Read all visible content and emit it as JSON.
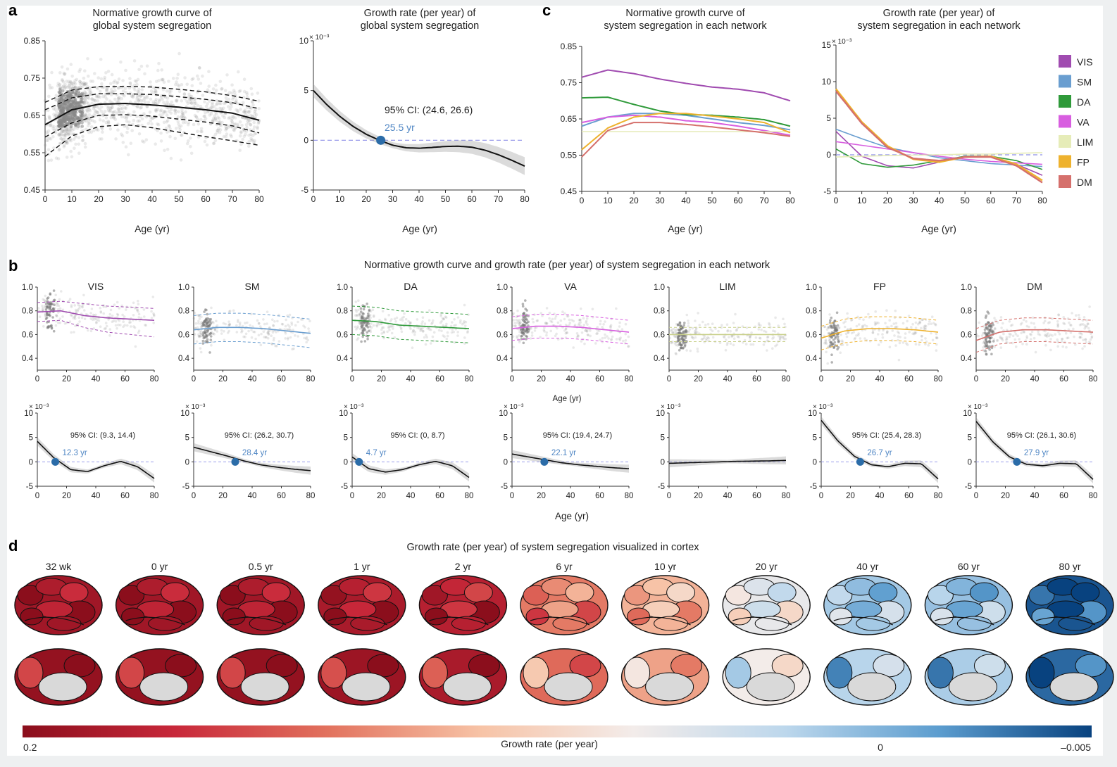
{
  "panel_letters": {
    "a": "a",
    "b": "b",
    "c": "c",
    "d": "d"
  },
  "colors": {
    "VIS": "#a04bb0",
    "SM": "#6a9ed0",
    "DA": "#2f9a3a",
    "VA": "#d85ee0",
    "LIM": "#e6ecb8",
    "FP": "#eeb22e",
    "DM": "#d5706c",
    "highlight_point": "#2b6ca8",
    "ci_text": "#4f86c4",
    "zero_line": "#8e90e8",
    "colorbar": [
      "#8b0e1c",
      "#c8283a",
      "#e2725e",
      "#f7c3a6",
      "#f3ecea",
      "#bcd7ec",
      "#5c9dcf",
      "#08427f"
    ]
  },
  "chart_data": [
    {
      "id": "a-left",
      "type": "scatter",
      "title": [
        "Normative growth curve of",
        "global system segregation"
      ],
      "xlabel": "Age (yr)",
      "xlim": [
        0,
        80
      ],
      "ylim": [
        0.45,
        0.85
      ],
      "xticks": [
        0,
        10,
        20,
        30,
        40,
        50,
        60,
        70,
        80
      ],
      "yticks": [
        0.45,
        0.55,
        0.65,
        0.75,
        0.85
      ],
      "ytick_labels": [
        "0.45",
        "0.55",
        "0.65",
        "0.75",
        "0.85"
      ],
      "series": [
        {
          "role": "median",
          "x": [
            0,
            10,
            20,
            30,
            40,
            50,
            60,
            70,
            80
          ],
          "y": [
            0.625,
            0.665,
            0.68,
            0.682,
            0.678,
            0.672,
            0.665,
            0.656,
            0.637
          ]
        },
        {
          "role": "centile",
          "x": [
            0,
            10,
            20,
            30,
            40,
            50,
            60,
            70,
            80
          ],
          "y": [
            0.685,
            0.718,
            0.727,
            0.728,
            0.726,
            0.72,
            0.713,
            0.703,
            0.688
          ]
        },
        {
          "role": "centile",
          "x": [
            0,
            10,
            20,
            30,
            40,
            50,
            60,
            70,
            80
          ],
          "y": [
            0.665,
            0.697,
            0.708,
            0.708,
            0.706,
            0.7,
            0.693,
            0.684,
            0.668
          ]
        },
        {
          "role": "centile",
          "x": [
            0,
            10,
            20,
            30,
            40,
            50,
            60,
            70,
            80
          ],
          "y": [
            0.592,
            0.63,
            0.65,
            0.652,
            0.648,
            0.64,
            0.632,
            0.622,
            0.603
          ]
        },
        {
          "role": "centile",
          "x": [
            0,
            10,
            20,
            30,
            40,
            50,
            60,
            70,
            80
          ],
          "y": [
            0.54,
            0.595,
            0.62,
            0.625,
            0.617,
            0.605,
            0.593,
            0.582,
            0.57
          ]
        }
      ]
    },
    {
      "id": "a-right",
      "type": "line",
      "title": [
        "Growth rate (per year) of",
        "global system segregation"
      ],
      "xlabel": "Age (yr)",
      "xlim": [
        0,
        80
      ],
      "ylim": [
        -5,
        10
      ],
      "xticks": [
        0,
        10,
        20,
        30,
        40,
        50,
        60,
        70,
        80
      ],
      "yticks": [
        -5,
        0,
        5,
        10
      ],
      "ytick_labels": [
        "-5",
        "0",
        "5",
        "10"
      ],
      "exponent": "× 10⁻³",
      "x": [
        0,
        5,
        10,
        15,
        20,
        25,
        30,
        35,
        40,
        45,
        50,
        55,
        60,
        65,
        70,
        75,
        80
      ],
      "y": [
        5.0,
        3.6,
        2.4,
        1.4,
        0.6,
        0.0,
        -0.5,
        -0.75,
        -0.8,
        -0.72,
        -0.62,
        -0.6,
        -0.7,
        -1.0,
        -1.45,
        -2.0,
        -2.6
      ],
      "point": {
        "x": 25.5,
        "y": 0
      },
      "ci_text": "95% CI: (24.6, 26.6)",
      "age_text": "25.5 yr"
    },
    {
      "id": "c-left",
      "type": "line",
      "title": [
        "Normative growth curve of",
        "system segregation in each network"
      ],
      "xlabel": "Age (yr)",
      "xlim": [
        0,
        80
      ],
      "ylim": [
        0.45,
        0.85
      ],
      "xticks": [
        0,
        10,
        20,
        30,
        40,
        50,
        60,
        70,
        80
      ],
      "yticks": [
        0.45,
        0.55,
        0.65,
        0.75,
        0.85
      ],
      "ytick_labels": [
        "0.45",
        "0.55",
        "0.65",
        "0.75",
        "0.85"
      ],
      "x": [
        0,
        10,
        20,
        30,
        40,
        50,
        60,
        70,
        80
      ],
      "series": [
        {
          "name": "VIS",
          "y": [
            0.765,
            0.785,
            0.775,
            0.76,
            0.748,
            0.738,
            0.732,
            0.722,
            0.7
          ]
        },
        {
          "name": "SM",
          "y": [
            0.63,
            0.655,
            0.665,
            0.665,
            0.66,
            0.65,
            0.64,
            0.632,
            0.62
          ]
        },
        {
          "name": "DA",
          "y": [
            0.708,
            0.71,
            0.69,
            0.672,
            0.662,
            0.66,
            0.655,
            0.648,
            0.63
          ]
        },
        {
          "name": "VA",
          "y": [
            0.64,
            0.655,
            0.66,
            0.655,
            0.645,
            0.64,
            0.63,
            0.618,
            0.605
          ]
        },
        {
          "name": "LIM",
          "y": [
            0.615,
            0.615,
            0.615,
            0.615,
            0.615,
            0.615,
            0.615,
            0.615,
            0.615
          ]
        },
        {
          "name": "FP",
          "y": [
            0.565,
            0.625,
            0.655,
            0.665,
            0.665,
            0.658,
            0.65,
            0.64,
            0.612
          ]
        },
        {
          "name": "DM",
          "y": [
            0.545,
            0.618,
            0.64,
            0.64,
            0.635,
            0.628,
            0.62,
            0.612,
            0.602
          ]
        }
      ]
    },
    {
      "id": "c-right",
      "type": "line",
      "title": [
        "Growth rate (per year) of",
        "system segregation in each network"
      ],
      "xlabel": "Age (yr)",
      "xlim": [
        0,
        80
      ],
      "ylim": [
        -5,
        15
      ],
      "xticks": [
        0,
        10,
        20,
        30,
        40,
        50,
        60,
        70,
        80
      ],
      "yticks": [
        -5,
        0,
        5,
        10,
        15
      ],
      "ytick_labels": [
        "-5",
        "0",
        "5",
        "10",
        "15"
      ],
      "exponent": "× 10⁻³",
      "x": [
        0,
        10,
        20,
        30,
        40,
        50,
        60,
        70,
        80
      ],
      "series": [
        {
          "name": "VIS",
          "y": [
            3.2,
            -0.2,
            -1.5,
            -1.8,
            -1.0,
            -0.2,
            -0.2,
            -1.3,
            -2.8
          ]
        },
        {
          "name": "SM",
          "y": [
            3.5,
            2.2,
            1.0,
            0.3,
            -0.4,
            -0.8,
            -1.2,
            -1.4,
            -1.6
          ]
        },
        {
          "name": "DA",
          "y": [
            0.8,
            -1.2,
            -1.7,
            -1.4,
            -0.8,
            -0.2,
            -0.2,
            -0.8,
            -2.0
          ]
        },
        {
          "name": "VA",
          "y": [
            1.8,
            1.3,
            0.8,
            0.3,
            -0.2,
            -0.6,
            -0.9,
            -1.1,
            -1.3
          ]
        },
        {
          "name": "LIM",
          "y": [
            -0.3,
            -0.2,
            -0.1,
            -0.05,
            0.0,
            0.1,
            0.1,
            0.2,
            0.3
          ]
        },
        {
          "name": "FP",
          "y": [
            9.0,
            4.5,
            1.2,
            -0.6,
            -1.0,
            -0.3,
            -0.2,
            -1.3,
            -3.5
          ]
        },
        {
          "name": "DM",
          "y": [
            8.7,
            4.3,
            1.0,
            -0.5,
            -0.8,
            -0.3,
            -0.3,
            -1.5,
            -3.8
          ]
        }
      ],
      "legend": [
        "VIS",
        "SM",
        "DA",
        "VA",
        "LIM",
        "FP",
        "DM"
      ]
    }
  ],
  "panel_b": {
    "title": "Normative growth curve and growth rate (per year) of system segregation in each network",
    "xlabel": "Age (yr)",
    "top_xticks": [
      0,
      20,
      40,
      60,
      80
    ],
    "top_yticks": [
      "0.4",
      "0.6",
      "0.8",
      "1.0"
    ],
    "bottom_yticks": [
      "-5",
      "0",
      "5",
      "10"
    ],
    "exponent": "× 10⁻³",
    "networks": [
      {
        "name": "VIS",
        "median": [
          0.79,
          0.8,
          0.76,
          0.74,
          0.73,
          0.72
        ],
        "upper": [
          0.87,
          0.88,
          0.86,
          0.84,
          0.83,
          0.82
        ],
        "lower": [
          0.71,
          0.72,
          0.66,
          0.62,
          0.6,
          0.58
        ],
        "rate": [
          4.2,
          0.8,
          -1.6,
          -2.0,
          -0.8,
          0.1,
          -1.0,
          -3.4
        ],
        "ci": "95% CI: (9.3, 14.4)",
        "age": "12.3 yr",
        "cross": 12.3
      },
      {
        "name": "SM",
        "median": [
          0.64,
          0.66,
          0.66,
          0.65,
          0.63,
          0.61
        ],
        "upper": [
          0.76,
          0.78,
          0.78,
          0.77,
          0.75,
          0.73
        ],
        "lower": [
          0.52,
          0.54,
          0.54,
          0.53,
          0.51,
          0.49
        ],
        "rate": [
          3.0,
          2.1,
          1.2,
          0.2,
          -0.6,
          -1.1,
          -1.5,
          -1.8
        ],
        "ci": "95% CI: (26.2, 30.7)",
        "age": "28.4 yr",
        "cross": 28.4
      },
      {
        "name": "DA",
        "median": [
          0.72,
          0.71,
          0.68,
          0.67,
          0.66,
          0.65
        ],
        "upper": [
          0.84,
          0.83,
          0.8,
          0.79,
          0.78,
          0.77
        ],
        "lower": [
          0.6,
          0.59,
          0.56,
          0.55,
          0.54,
          0.53
        ],
        "rate": [
          1.0,
          -1.4,
          -2.1,
          -1.6,
          -0.6,
          0.1,
          -0.8,
          -3.2
        ],
        "ci": "95% CI: (0, 8.7)",
        "age": "4.7 yr",
        "cross": 4.7
      },
      {
        "name": "VA",
        "median": [
          0.65,
          0.67,
          0.67,
          0.66,
          0.64,
          0.62
        ],
        "upper": [
          0.75,
          0.77,
          0.77,
          0.76,
          0.74,
          0.72
        ],
        "lower": [
          0.55,
          0.57,
          0.57,
          0.56,
          0.54,
          0.52
        ],
        "rate": [
          1.6,
          1.0,
          0.4,
          -0.2,
          -0.6,
          -0.9,
          -1.2,
          -1.4
        ],
        "ci": "95% CI: (19.4, 24.7)",
        "age": "22.1 yr",
        "cross": 22.1
      },
      {
        "name": "LIM",
        "median": [
          0.6,
          0.6,
          0.6,
          0.6,
          0.6,
          0.6
        ],
        "upper": [
          0.66,
          0.66,
          0.66,
          0.66,
          0.66,
          0.66
        ],
        "lower": [
          0.54,
          0.54,
          0.54,
          0.54,
          0.54,
          0.54
        ],
        "rate": [
          -0.3,
          -0.2,
          -0.1,
          0.0,
          0.1,
          0.15,
          0.2,
          0.3
        ],
        "ci": "",
        "age": "",
        "cross": null
      },
      {
        "name": "FP",
        "median": [
          0.57,
          0.63,
          0.65,
          0.65,
          0.64,
          0.62
        ],
        "upper": [
          0.67,
          0.73,
          0.75,
          0.75,
          0.74,
          0.72
        ],
        "lower": [
          0.47,
          0.53,
          0.55,
          0.55,
          0.54,
          0.52
        ],
        "rate": [
          8.5,
          4.3,
          1.1,
          -0.6,
          -1.0,
          -0.3,
          -0.4,
          -3.5
        ],
        "ci": "95% CI: (25.4, 28.3)",
        "age": "26.7 yr",
        "cross": 26.7
      },
      {
        "name": "DM",
        "median": [
          0.55,
          0.62,
          0.64,
          0.64,
          0.63,
          0.62
        ],
        "upper": [
          0.65,
          0.72,
          0.74,
          0.74,
          0.73,
          0.72
        ],
        "lower": [
          0.45,
          0.52,
          0.54,
          0.54,
          0.53,
          0.52
        ],
        "rate": [
          8.3,
          4.1,
          1.0,
          -0.5,
          -0.8,
          -0.3,
          -0.4,
          -3.6
        ],
        "ci": "95% CI: (26.1, 30.6)",
        "age": "27.9 yr",
        "cross": 27.9
      }
    ]
  },
  "panel_d": {
    "title": "Growth rate (per year) of system segregation visualized in cortex",
    "ages": [
      "32 wk",
      "0 yr",
      "0.5 yr",
      "1 yr",
      "2 yr",
      "6 yr",
      "10 yr",
      "20 yr",
      "40 yr",
      "60 yr",
      "80 yr"
    ],
    "intensity": [
      0.0,
      0.0,
      0.0,
      0.02,
      0.05,
      0.25,
      0.35,
      0.55,
      0.7,
      0.72,
      0.92
    ],
    "colorbar_label": "Growth rate (per year)",
    "colorbar_ticks": [
      "0.2",
      "0",
      "–0.005"
    ]
  }
}
